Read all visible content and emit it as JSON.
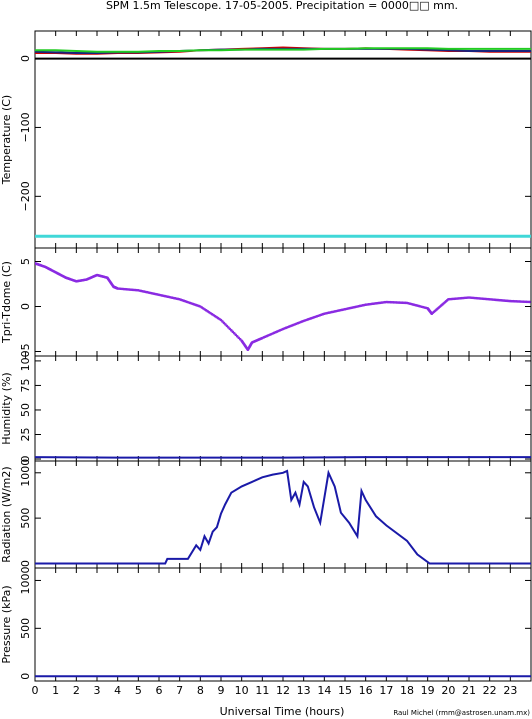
{
  "title": "SPM 1.5m Telescope. 17-05-2005. Precipitation = 0000□□ mm.",
  "xlabel": "Universal Time (hours)",
  "credit": "Raul Michel (rmm@astrosen.unam.mx)",
  "chart_data": [
    {
      "type": "line",
      "ylabel": "Temperature (C)",
      "xlim": [
        0,
        24
      ],
      "ylim": [
        -275,
        40
      ],
      "yticks": [
        0,
        -100,
        -200
      ],
      "series": [
        {
          "color": "#d00000",
          "x": [
            0,
            1,
            2,
            3,
            4,
            5,
            6,
            7,
            8,
            9,
            10,
            11,
            12,
            13,
            14,
            15,
            16,
            17,
            18,
            19,
            20,
            21,
            22,
            23,
            24
          ],
          "y": [
            8,
            8,
            7,
            7,
            8,
            8,
            9,
            10,
            12,
            13,
            14,
            15,
            16,
            15,
            14,
            14,
            15,
            14,
            13,
            12,
            11,
            11,
            10,
            10,
            10
          ]
        },
        {
          "color": "#1a237e",
          "x": [
            0,
            1,
            2,
            3,
            4,
            5,
            6,
            7,
            8,
            9,
            10,
            11,
            12,
            13,
            14,
            15,
            16,
            17,
            18,
            19,
            20,
            21,
            22,
            23,
            24
          ],
          "y": [
            10,
            9,
            8,
            8,
            9,
            9,
            10,
            11,
            12,
            13,
            13,
            14,
            14,
            14,
            14,
            14,
            14,
            14,
            14,
            13,
            12,
            11,
            11,
            11,
            11
          ]
        },
        {
          "color": "#22cc22",
          "x": [
            0,
            1,
            2,
            3,
            4,
            5,
            6,
            7,
            8,
            9,
            10,
            11,
            12,
            13,
            14,
            15,
            16,
            17,
            18,
            19,
            20,
            21,
            22,
            23,
            24
          ],
          "y": [
            12,
            12,
            11,
            10,
            10,
            10,
            11,
            11,
            12,
            12,
            13,
            13,
            13,
            13,
            14,
            14,
            15,
            15,
            15,
            15,
            14,
            14,
            14,
            14,
            14
          ]
        },
        {
          "color": "#000000",
          "x": [
            0,
            24
          ],
          "y": [
            0,
            0
          ]
        },
        {
          "color": "#40d8d8",
          "x": [
            0,
            24
          ],
          "y": [
            -258,
            -258
          ]
        }
      ]
    },
    {
      "type": "scatter",
      "ylabel": "Tpri-Tdome (C)",
      "xlim": [
        0,
        24
      ],
      "ylim": [
        -5.5,
        6.5
      ],
      "yticks": [
        -5,
        0,
        5
      ],
      "series": [
        {
          "color": "#8a2be2",
          "x": [
            0,
            0.5,
            1,
            1.5,
            2,
            2.5,
            3,
            3.5,
            3.8,
            4,
            5,
            6,
            7,
            8,
            9,
            10,
            10.3,
            10.5,
            11,
            12,
            13,
            14,
            15,
            16,
            17,
            18,
            19,
            19.2,
            20,
            21,
            22,
            23,
            24
          ],
          "y": [
            4.8,
            4.4,
            3.8,
            3.2,
            2.8,
            3.0,
            3.5,
            3.2,
            2.2,
            2.0,
            1.8,
            1.3,
            0.8,
            0,
            -1.5,
            -3.8,
            -4.8,
            -4,
            -3.5,
            -2.5,
            -1.6,
            -0.8,
            -0.3,
            0.2,
            0.5,
            0.4,
            -0.2,
            -0.8,
            0.8,
            1.0,
            0.8,
            0.6,
            0.5
          ]
        }
      ]
    },
    {
      "type": "line",
      "ylabel": "Humidity (%)",
      "xlim": [
        0,
        24
      ],
      "ylim": [
        -2,
        105
      ],
      "yticks": [
        0,
        25,
        50,
        75,
        100
      ],
      "series": [
        {
          "color": "#1a1aa8",
          "x": [
            0,
            4,
            8,
            12,
            16,
            20,
            24
          ],
          "y": [
            2,
            1.5,
            1.5,
            1.5,
            2,
            2,
            2
          ]
        }
      ]
    },
    {
      "type": "line",
      "ylabel": "Radiation (W/m2)",
      "xlim": [
        0,
        24
      ],
      "ylim": [
        -50,
        1130
      ],
      "yticks": [
        0,
        500,
        1000
      ],
      "series": [
        {
          "color": "#1a1aa8",
          "x": [
            0,
            6.3,
            6.4,
            7.4,
            7.8,
            8.0,
            8.2,
            8.4,
            8.6,
            8.8,
            9.0,
            9.2,
            9.5,
            10,
            10.5,
            11,
            11.5,
            12,
            12.2,
            12.4,
            12.6,
            12.8,
            13,
            13.2,
            13.5,
            13.8,
            14.2,
            14.5,
            14.8,
            15.2,
            15.6,
            15.8,
            16.0,
            16.5,
            17,
            18,
            18.5,
            19.1,
            19.2,
            24
          ],
          "y": [
            0,
            0,
            50,
            50,
            200,
            150,
            300,
            220,
            350,
            400,
            550,
            650,
            780,
            850,
            900,
            950,
            980,
            1000,
            1020,
            700,
            780,
            650,
            900,
            850,
            620,
            450,
            1000,
            850,
            560,
            450,
            300,
            800,
            700,
            520,
            420,
            250,
            100,
            0,
            0,
            0
          ]
        }
      ]
    },
    {
      "type": "line",
      "ylabel": "Pressure (kPa)",
      "xlim": [
        0,
        24
      ],
      "ylim": [
        -50,
        1130
      ],
      "yticks": [
        0,
        500,
        1000
      ],
      "series": [
        {
          "color": "#1a1aa8",
          "x": [
            0,
            24
          ],
          "y": [
            0,
            0
          ]
        }
      ]
    }
  ],
  "xticks": [
    0,
    1,
    2,
    3,
    4,
    5,
    6,
    7,
    8,
    9,
    10,
    11,
    12,
    13,
    14,
    15,
    16,
    17,
    18,
    19,
    20,
    21,
    22,
    23
  ]
}
